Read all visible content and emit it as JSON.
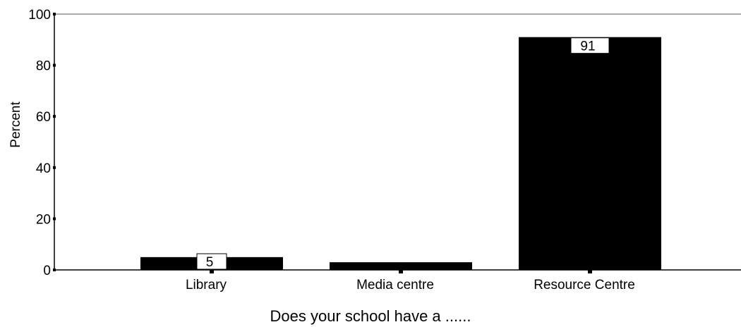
{
  "chart_data": {
    "type": "bar",
    "title": "",
    "xlabel": "Does your school have a ......",
    "ylabel": "Percent",
    "ylim": [
      0,
      100
    ],
    "yticks": [
      0,
      20,
      40,
      60,
      80,
      100
    ],
    "categories": [
      "Library",
      "Media centre",
      "Resource Centre"
    ],
    "values": [
      5,
      3,
      91
    ],
    "data_labels": [
      "5",
      "",
      "91"
    ],
    "bar_color": "#000000",
    "grid": false,
    "legend": "none"
  }
}
